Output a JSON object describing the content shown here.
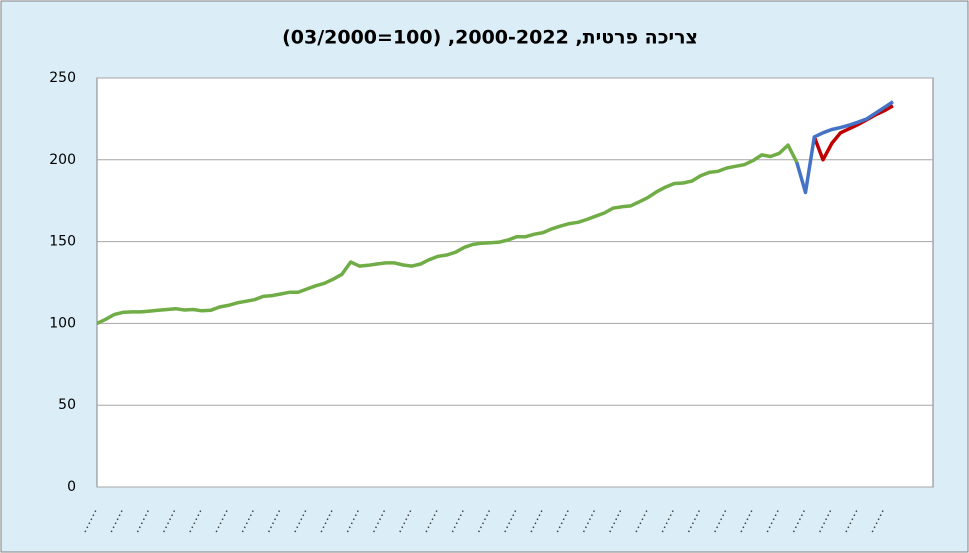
{
  "chart_data": {
    "type": "line",
    "title": "צריכה פרטית,  2000-2022, (100=03/2000)",
    "categories": [
      null,
      null,
      null,
      null,
      null,
      null,
      null,
      null,
      null,
      null,
      null,
      null,
      null,
      null,
      null,
      null,
      null,
      null,
      null,
      null,
      null,
      null,
      null,
      null,
      null,
      null,
      null,
      null,
      null,
      null,
      null,
      null,
      null,
      null,
      null,
      null,
      null,
      null,
      null,
      null,
      null,
      null,
      null,
      null,
      null,
      null,
      null,
      null,
      null,
      null,
      null,
      null,
      null,
      null,
      null,
      null,
      null,
      null,
      null,
      null,
      null,
      null,
      null,
      null,
      null,
      null,
      null,
      null,
      null,
      null,
      null,
      null,
      null,
      null,
      null,
      null,
      null,
      null,
      null,
      null,
      null,
      null,
      null,
      null,
      null,
      null,
      null,
      null,
      null,
      null,
      null,
      null
    ],
    "series": [
      {
        "color": "#70ad47",
        "values": [
          100,
          102.5,
          105.5,
          106.8,
          107,
          107,
          107.5,
          108,
          108.5,
          109,
          108.2,
          108.5,
          107.7,
          108,
          110,
          111,
          112.5,
          113.5,
          114.5,
          116.5,
          117,
          118,
          119,
          119,
          121,
          123,
          124.5,
          127,
          130,
          137.5,
          135,
          135.5,
          136.3,
          137,
          137,
          135.7,
          135,
          136.3,
          139,
          141,
          141.8,
          143.5,
          146.5,
          148.3,
          149,
          149.3,
          149.7,
          151,
          153,
          153,
          154.5,
          155.5,
          157.8,
          159.5,
          161,
          161.8,
          163.5,
          165.5,
          167.5,
          170.5,
          171.3,
          171.8,
          174.3,
          177,
          180.5,
          183.3,
          185.5,
          185.8,
          187,
          190.2,
          192.3,
          193,
          195,
          196,
          197,
          199.5,
          203,
          202,
          204,
          209,
          198.5,
          null,
          null,
          null,
          null,
          null,
          null,
          null,
          null,
          null,
          null,
          null
        ]
      },
      {
        "color": "#c00000",
        "values": [
          null,
          null,
          null,
          null,
          null,
          null,
          null,
          null,
          null,
          null,
          null,
          null,
          null,
          null,
          null,
          null,
          null,
          null,
          null,
          null,
          null,
          null,
          null,
          null,
          null,
          null,
          null,
          null,
          null,
          null,
          null,
          null,
          null,
          null,
          null,
          null,
          null,
          null,
          null,
          null,
          null,
          null,
          null,
          null,
          null,
          null,
          null,
          null,
          null,
          null,
          null,
          null,
          null,
          null,
          null,
          null,
          null,
          null,
          null,
          null,
          null,
          null,
          null,
          null,
          null,
          null,
          null,
          null,
          null,
          null,
          null,
          null,
          null,
          null,
          null,
          null,
          null,
          null,
          null,
          null,
          null,
          null,
          214,
          200,
          210,
          216.5,
          219,
          221.5,
          224.5,
          227.5,
          230,
          233
        ]
      },
      {
        "color": "#4472c4",
        "values": [
          null,
          null,
          null,
          null,
          null,
          null,
          null,
          null,
          null,
          null,
          null,
          null,
          null,
          null,
          null,
          null,
          null,
          null,
          null,
          null,
          null,
          null,
          null,
          null,
          null,
          null,
          null,
          null,
          null,
          null,
          null,
          null,
          null,
          null,
          null,
          null,
          null,
          null,
          null,
          null,
          null,
          null,
          null,
          null,
          null,
          null,
          null,
          null,
          null,
          null,
          null,
          null,
          null,
          null,
          null,
          null,
          null,
          null,
          null,
          null,
          null,
          null,
          null,
          null,
          null,
          null,
          null,
          null,
          null,
          null,
          null,
          null,
          null,
          null,
          null,
          null,
          null,
          null,
          null,
          null,
          198.5,
          180,
          214,
          216.5,
          218.5,
          219.7,
          221.2,
          223,
          225,
          228.5,
          232,
          235.5
        ]
      }
    ],
    "ylim": [
      0,
      250
    ],
    "yticks": [
      0,
      50,
      100,
      150,
      200,
      250
    ],
    "grid": true
  }
}
